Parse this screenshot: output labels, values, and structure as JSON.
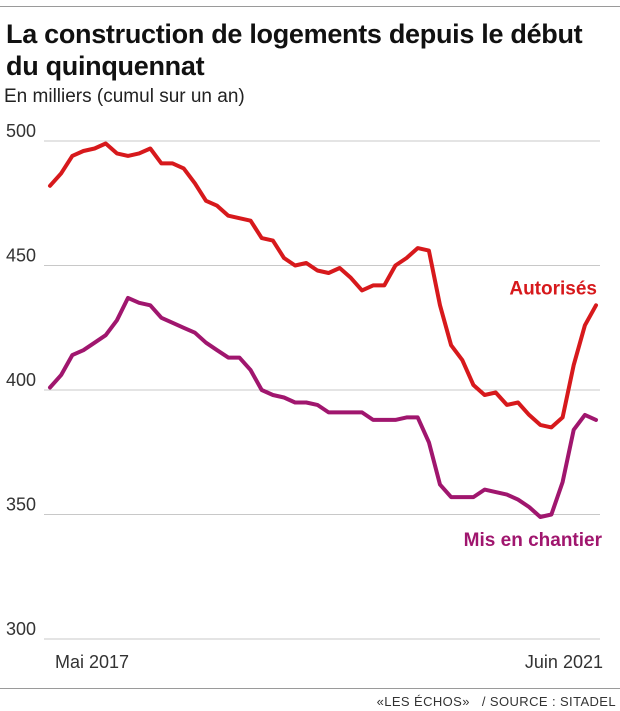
{
  "title": "La construction de logements depuis le début du quinquennat",
  "subtitle": "En milliers (cumul sur un an)",
  "source": "«LES ÉCHOS»   / SOURCE : SITADEL",
  "colors": {
    "autorises": "#d7191c",
    "mis_en_chantier": "#a0166e",
    "grid": "#c8c8c8"
  },
  "chart_data": {
    "type": "line",
    "ylim": [
      300,
      500
    ],
    "yticks": [
      300,
      350,
      400,
      450,
      500
    ],
    "x_labels": [
      "Mai 2017",
      "Juin 2021"
    ],
    "x": [
      "2017-05",
      "2017-06",
      "2017-07",
      "2017-08",
      "2017-09",
      "2017-10",
      "2017-11",
      "2017-12",
      "2018-01",
      "2018-02",
      "2018-03",
      "2018-04",
      "2018-05",
      "2018-06",
      "2018-07",
      "2018-08",
      "2018-09",
      "2018-10",
      "2018-11",
      "2018-12",
      "2019-01",
      "2019-02",
      "2019-03",
      "2019-04",
      "2019-05",
      "2019-06",
      "2019-07",
      "2019-08",
      "2019-09",
      "2019-10",
      "2019-11",
      "2019-12",
      "2020-01",
      "2020-02",
      "2020-03",
      "2020-04",
      "2020-05",
      "2020-06",
      "2020-07",
      "2020-08",
      "2020-09",
      "2020-10",
      "2020-11",
      "2020-12",
      "2021-01",
      "2021-02",
      "2021-03",
      "2021-04",
      "2021-05",
      "2021-06"
    ],
    "series": [
      {
        "name": "Autorisés",
        "color": "#d7191c",
        "values": [
          482,
          487,
          494,
          496,
          497,
          499,
          495,
          494,
          495,
          497,
          491,
          491,
          489,
          483,
          476,
          474,
          470,
          469,
          468,
          461,
          460,
          453,
          450,
          451,
          448,
          447,
          449,
          445,
          440,
          442,
          442,
          450,
          453,
          457,
          456,
          434,
          418,
          412,
          402,
          398,
          399,
          394,
          395,
          390,
          386,
          385,
          389,
          410,
          426,
          434
        ]
      },
      {
        "name": "Mis en chantier",
        "color": "#a0166e",
        "values": [
          401,
          406,
          414,
          416,
          419,
          422,
          428,
          437,
          435,
          434,
          429,
          427,
          425,
          423,
          419,
          416,
          413,
          413,
          408,
          400,
          398,
          397,
          395,
          395,
          394,
          391,
          391,
          391,
          391,
          388,
          388,
          388,
          389,
          389,
          379,
          362,
          357,
          357,
          357,
          360,
          359,
          358,
          356,
          353,
          349,
          350,
          363,
          384,
          390,
          388
        ]
      }
    ]
  }
}
